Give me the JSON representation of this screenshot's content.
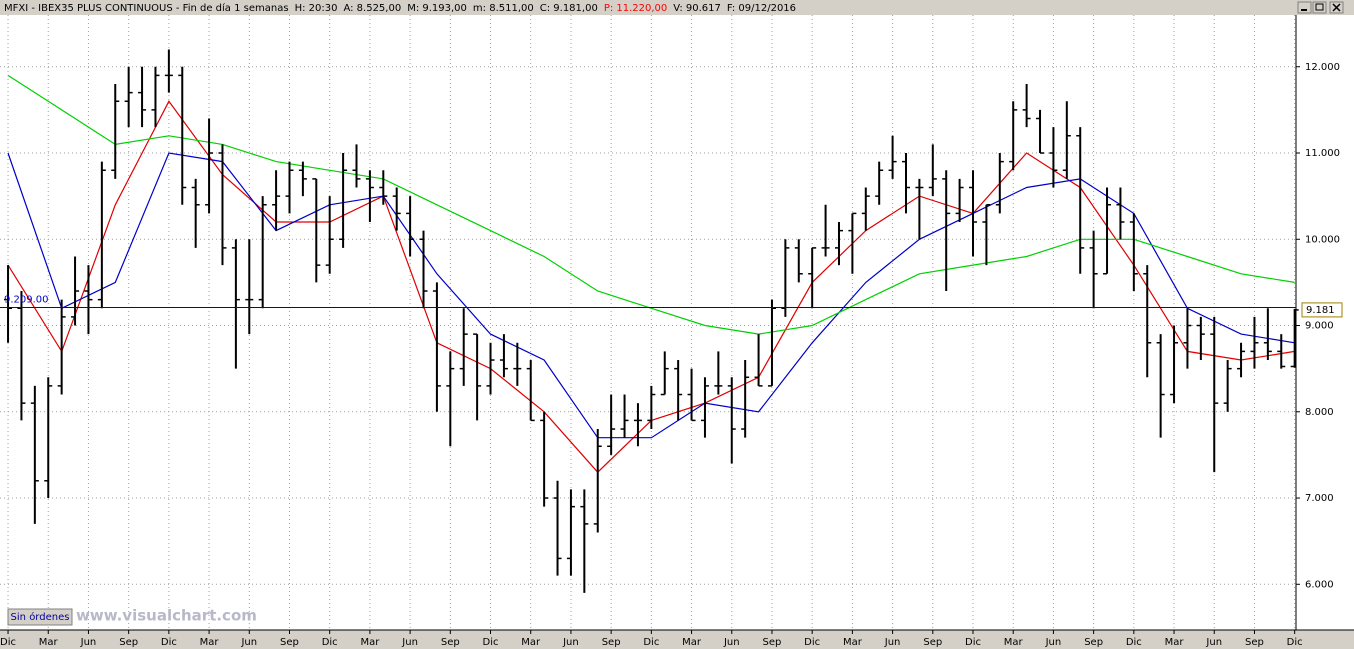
{
  "header": {
    "title": "MFXI - IBEX35 PLUS CONTINUOUS - Fin de día 1 semanas",
    "fields": [
      {
        "text": "H: 20:30"
      },
      {
        "text": "A: 8.525,00"
      },
      {
        "text": "M: 9.193,00"
      },
      {
        "text": "m: 8.511,00"
      },
      {
        "text": "C: 9.181,00"
      },
      {
        "text": "P: 11.220,00",
        "color": "#ff0000"
      },
      {
        "text": "V: 90.617"
      },
      {
        "text": "F: 09/12/2016"
      }
    ]
  },
  "button": "Sin órdenes",
  "watermark": "www.visualchart.com",
  "chart_data": {
    "type": "candlestick",
    "color": "#000000",
    "x": [
      0,
      1,
      2,
      3,
      4,
      5,
      6,
      7,
      8,
      9,
      10,
      11,
      12,
      13,
      14,
      15,
      16,
      17,
      18,
      19,
      20,
      21,
      22,
      23,
      24,
      25,
      26,
      27,
      28,
      29,
      30,
      31,
      32,
      33,
      34,
      35,
      36,
      37,
      38,
      39,
      40,
      41,
      42,
      43,
      44,
      45,
      46,
      47,
      48,
      49,
      50,
      51,
      52,
      53,
      54,
      55,
      56,
      57,
      58,
      59,
      60,
      61,
      62,
      63,
      64,
      65,
      66,
      67,
      68,
      69,
      70,
      71,
      72,
      73,
      74,
      75,
      76,
      77,
      78,
      79,
      80,
      81,
      82,
      83,
      84,
      85,
      86,
      87,
      88,
      89,
      90,
      91,
      92,
      93,
      94,
      95,
      96
    ],
    "open": [
      9300,
      9200,
      8100,
      7200,
      8300,
      9100,
      9400,
      9300,
      10800,
      11600,
      11700,
      11500,
      11900,
      11900,
      10600,
      10400,
      11000,
      9900,
      9300,
      9300,
      10400,
      10500,
      10800,
      10700,
      9700,
      10000,
      10800,
      10700,
      10600,
      10500,
      10300,
      10000,
      9400,
      8300,
      8500,
      8900,
      8300,
      8600,
      8500,
      8500,
      7900,
      7000,
      6300,
      6900,
      6700,
      7600,
      7800,
      7900,
      7900,
      8200,
      8500,
      8200,
      7900,
      8300,
      8300,
      7800,
      8400,
      8300,
      9200,
      9900,
      9600,
      9900,
      9900,
      10100,
      10300,
      10500,
      10800,
      10900,
      10600,
      10600,
      10700,
      10300,
      10600,
      10200,
      10400,
      10900,
      11500,
      11400,
      11000,
      10800,
      11200,
      9900,
      9600,
      10400,
      10200,
      9600,
      8800,
      8200,
      8800,
      9000,
      8900,
      8100,
      8500,
      8700,
      8800,
      8700,
      8525
    ],
    "high": [
      9700,
      9400,
      8300,
      8400,
      9300,
      9800,
      9700,
      10900,
      11800,
      12000,
      12000,
      12000,
      12200,
      12000,
      10700,
      11400,
      11100,
      10000,
      10000,
      10500,
      10800,
      10900,
      10900,
      10700,
      10500,
      11000,
      11100,
      10800,
      10800,
      10600,
      10500,
      10100,
      9500,
      8700,
      9200,
      8900,
      8800,
      8900,
      8800,
      8600,
      8000,
      7200,
      7100,
      7100,
      7800,
      8200,
      8200,
      8100,
      8300,
      8700,
      8600,
      8500,
      8400,
      8700,
      8400,
      8600,
      8900,
      9300,
      10000,
      10000,
      9900,
      10400,
      10200,
      10300,
      10600,
      10900,
      11200,
      11000,
      10700,
      11100,
      10800,
      10700,
      10800,
      10400,
      11000,
      11600,
      11800,
      11500,
      11300,
      11600,
      11300,
      10100,
      10600,
      10600,
      10300,
      9700,
      8900,
      9000,
      9200,
      9100,
      9100,
      8600,
      8800,
      9100,
      9200,
      8900,
      9193
    ],
    "low": [
      8800,
      7900,
      6700,
      7000,
      8200,
      9000,
      8900,
      9200,
      10700,
      11300,
      11300,
      11300,
      11700,
      10400,
      9900,
      10300,
      9700,
      8500,
      8900,
      9200,
      10100,
      10300,
      10500,
      9500,
      9600,
      9900,
      10600,
      10200,
      10400,
      10100,
      9800,
      9200,
      8000,
      7600,
      8300,
      7900,
      8200,
      8400,
      8300,
      7900,
      6900,
      6100,
      6100,
      5900,
      6600,
      7500,
      7700,
      7600,
      7800,
      8200,
      7900,
      7900,
      7700,
      8200,
      7400,
      7700,
      8300,
      8300,
      9100,
      9500,
      9200,
      9800,
      9700,
      9600,
      10100,
      10400,
      10700,
      10300,
      10000,
      10500,
      9400,
      10200,
      9800,
      9700,
      10300,
      10800,
      11300,
      11000,
      10600,
      10700,
      9600,
      9200,
      9600,
      10000,
      9400,
      8400,
      7700,
      8100,
      8500,
      8600,
      7300,
      8000,
      8400,
      8500,
      8600,
      8500,
      8511
    ],
    "close": [
      9200,
      8100,
      7200,
      8300,
      9100,
      9400,
      9300,
      10800,
      11600,
      11700,
      11500,
      11900,
      11900,
      10600,
      10400,
      11000,
      9900,
      9300,
      9300,
      10400,
      10500,
      10800,
      10700,
      9700,
      10000,
      10800,
      10700,
      10600,
      10500,
      10300,
      10000,
      9400,
      8300,
      8500,
      8900,
      8300,
      8600,
      8500,
      8500,
      7900,
      7000,
      6300,
      6900,
      6700,
      7600,
      7800,
      7900,
      7900,
      8200,
      8500,
      8200,
      7900,
      8300,
      8300,
      7800,
      8400,
      8300,
      9200,
      9900,
      9600,
      9900,
      9900,
      10100,
      10300,
      10500,
      10800,
      10900,
      10600,
      10600,
      10700,
      10300,
      10600,
      10200,
      10400,
      10900,
      11500,
      11400,
      11000,
      10800,
      11200,
      9900,
      9600,
      10400,
      10200,
      9600,
      8800,
      8200,
      8800,
      9000,
      8900,
      8100,
      8500,
      8700,
      8800,
      8700,
      8525,
      9181
    ],
    "lines": [
      {
        "color": "#e00000",
        "x": [
          0,
          4,
          8,
          12,
          16,
          20,
          24,
          28,
          32,
          36,
          40,
          44,
          48,
          52,
          56,
          60,
          64,
          68,
          72,
          76,
          80,
          84,
          88,
          92,
          96
        ],
        "values": [
          9700,
          8700,
          10400,
          11600,
          10750,
          10200,
          10200,
          10500,
          8800,
          8500,
          8000,
          7300,
          7900,
          8100,
          8400,
          9500,
          10100,
          10500,
          10300,
          11000,
          10600,
          9700,
          8700,
          8600,
          8700
        ]
      },
      {
        "color": "#0000c8",
        "x": [
          0,
          4,
          8,
          12,
          16,
          20,
          24,
          28,
          32,
          36,
          40,
          44,
          48,
          52,
          56,
          60,
          64,
          68,
          72,
          76,
          80,
          84,
          88,
          92,
          96
        ],
        "values": [
          11000,
          9200,
          9500,
          11000,
          10900,
          10100,
          10400,
          10500,
          9600,
          8900,
          8600,
          7700,
          7700,
          8100,
          8000,
          8800,
          9500,
          10000,
          10300,
          10600,
          10700,
          10300,
          9200,
          8900,
          8800
        ]
      },
      {
        "color": "#00d000",
        "x": [
          0,
          4,
          8,
          12,
          16,
          20,
          24,
          28,
          32,
          36,
          40,
          44,
          48,
          52,
          56,
          60,
          64,
          68,
          72,
          76,
          80,
          84,
          88,
          92,
          96
        ],
        "values": [
          11900,
          11500,
          11100,
          11200,
          11100,
          10900,
          10800,
          10700,
          10400,
          10100,
          9800,
          9400,
          9200,
          9000,
          8900,
          9000,
          9300,
          9600,
          9700,
          9800,
          10000,
          10000,
          9800,
          9600,
          9500
        ]
      }
    ],
    "hline": {
      "value": 9209,
      "label": "9.209.00",
      "color": "#0000c8"
    },
    "last_price": {
      "value": 9181,
      "label": "9.181"
    },
    "xlim": [
      -0.6,
      96.1
    ],
    "ylim": [
      5470,
      12600
    ],
    "yticks": [
      {
        "value": 6000,
        "label": "6.000"
      },
      {
        "value": 7000,
        "label": "7.000"
      },
      {
        "value": 8000,
        "label": "8.000"
      },
      {
        "value": 9000,
        "label": "9.000"
      },
      {
        "value": 10000,
        "label": "10.000"
      },
      {
        "value": 11000,
        "label": "11.000"
      },
      {
        "value": 12000,
        "label": "12.000"
      }
    ],
    "xticks": [
      {
        "value": 0,
        "label": "Dic"
      },
      {
        "value": 3,
        "label": "Mar"
      },
      {
        "value": 6,
        "label": "Jun"
      },
      {
        "value": 9,
        "label": "Sep"
      },
      {
        "value": 12,
        "label": "Dic"
      },
      {
        "value": 15,
        "label": "Mar"
      },
      {
        "value": 18,
        "label": "Jun"
      },
      {
        "value": 21,
        "label": "Sep"
      },
      {
        "value": 24,
        "label": "Dic"
      },
      {
        "value": 27,
        "label": "Mar"
      },
      {
        "value": 30,
        "label": "Jun"
      },
      {
        "value": 33,
        "label": "Sep"
      },
      {
        "value": 36,
        "label": "Dic"
      },
      {
        "value": 39,
        "label": "Mar"
      },
      {
        "value": 42,
        "label": "Jun"
      },
      {
        "value": 45,
        "label": "Sep"
      },
      {
        "value": 48,
        "label": "Dic"
      },
      {
        "value": 51,
        "label": "Mar"
      },
      {
        "value": 54,
        "label": "Jun"
      },
      {
        "value": 57,
        "label": "Sep"
      },
      {
        "value": 60,
        "label": "Dic"
      },
      {
        "value": 63,
        "label": "Mar"
      },
      {
        "value": 66,
        "label": "Jun"
      },
      {
        "value": 69,
        "label": "Sep"
      },
      {
        "value": 72,
        "label": "Dic"
      },
      {
        "value": 75,
        "label": "Mar"
      },
      {
        "value": 78,
        "label": "Jun"
      },
      {
        "value": 81,
        "label": "Sep"
      },
      {
        "value": 84,
        "label": "Dic"
      },
      {
        "value": 87,
        "label": "Mar"
      },
      {
        "value": 90,
        "label": "Jun"
      },
      {
        "value": 93,
        "label": "Sep"
      },
      {
        "value": 96,
        "label": "Dic"
      }
    ],
    "grid": true
  }
}
